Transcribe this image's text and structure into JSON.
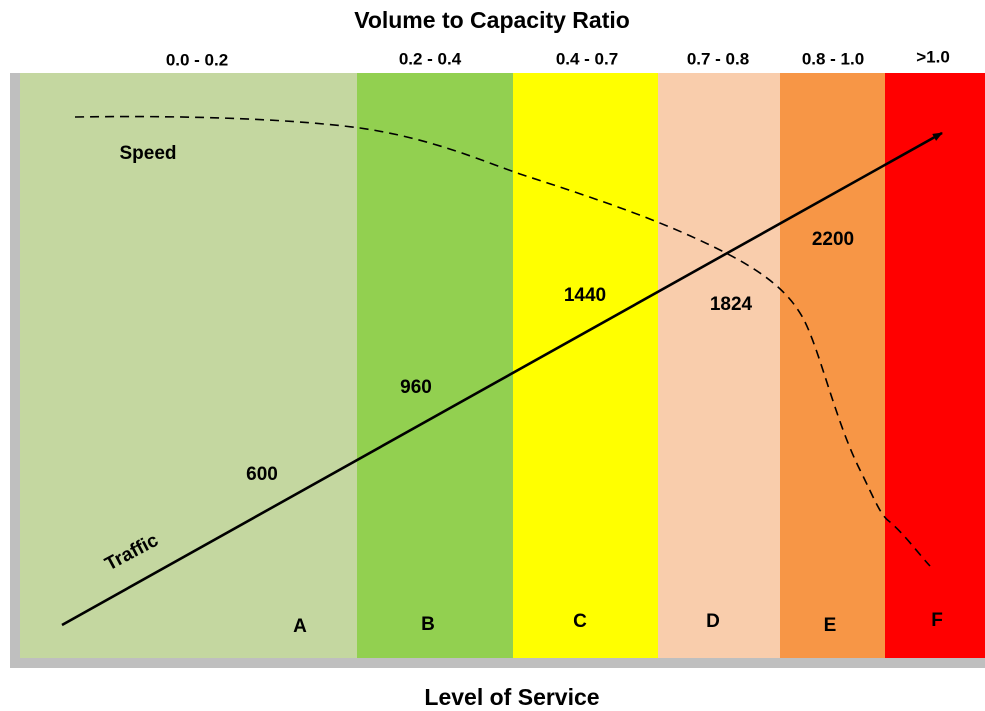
{
  "title": "Volume to Capacity Ratio",
  "bands": [
    {
      "ratio": "0.0 - 0.2",
      "los": "A"
    },
    {
      "ratio": "0.2 - 0.4",
      "los": "B"
    },
    {
      "ratio": "0.4 - 0.7",
      "los": "C"
    },
    {
      "ratio": "0.7 - 0.8",
      "los": "D"
    },
    {
      "ratio": "0.8 - 1.0",
      "los": "E"
    },
    {
      "ratio": ">1.0",
      "los": "F"
    }
  ],
  "curves": {
    "speed": "Speed",
    "traffic": "Traffic"
  },
  "volumes": [
    600,
    960,
    1440,
    1824,
    2200
  ],
  "footer": "Level of Service"
}
